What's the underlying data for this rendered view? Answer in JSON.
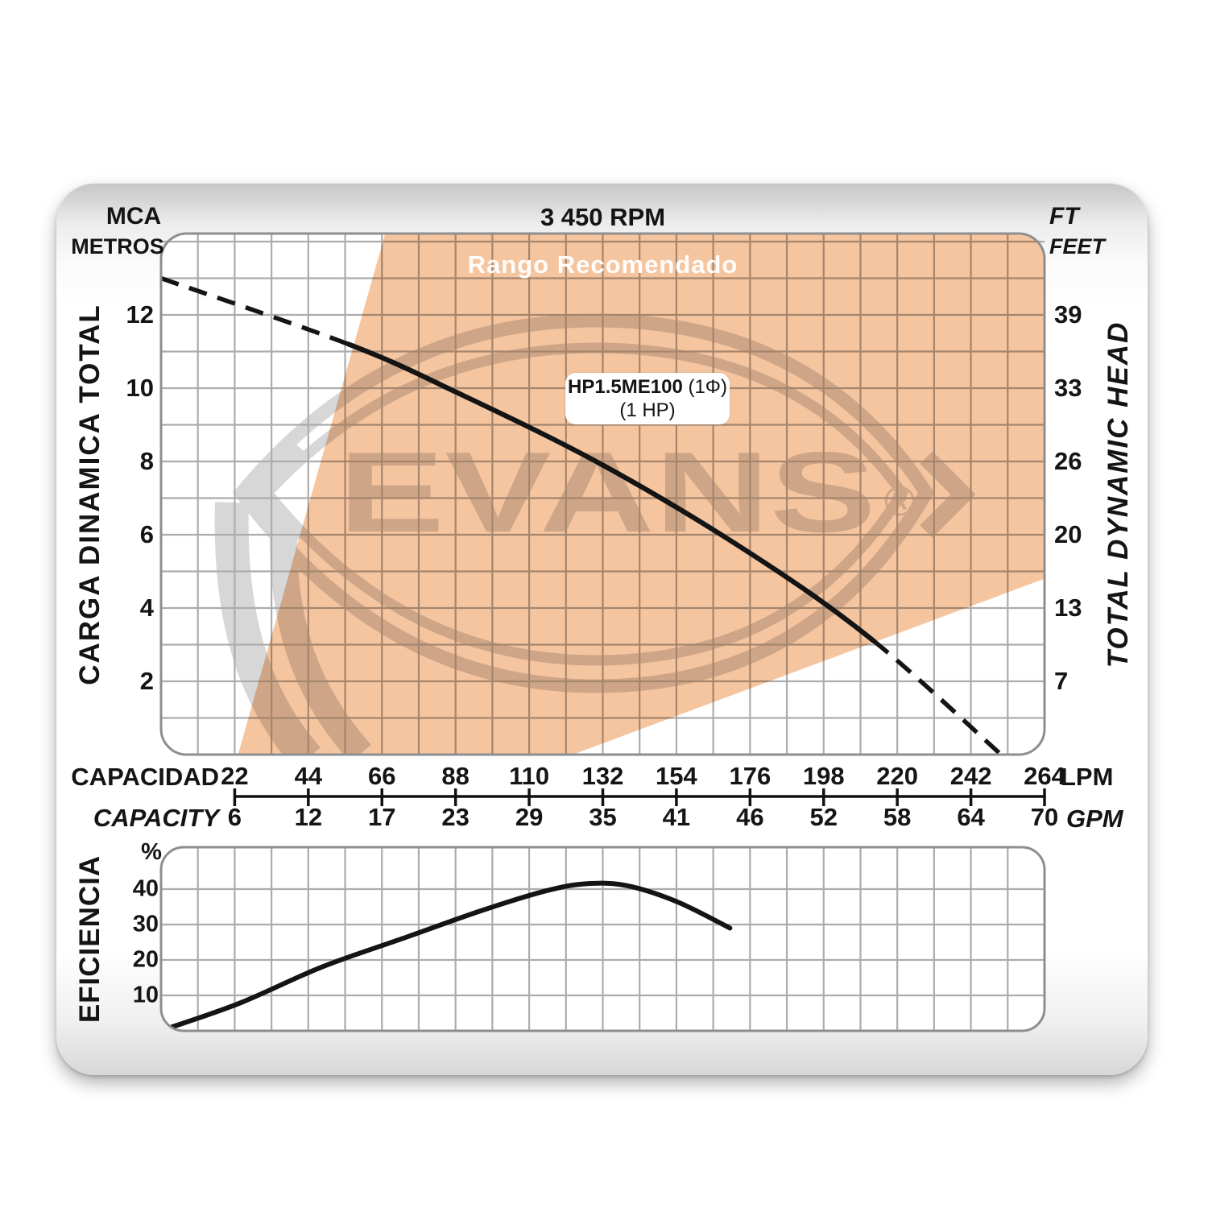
{
  "header": {
    "speed": "3 450 RPM",
    "mca": "MCA",
    "metros": "METROS",
    "ft": "FT",
    "feet": "FEET"
  },
  "main_chart": {
    "recommended_label": "Rango Recomendado",
    "left_axis_title": "CARGA DINAMICA TOTAL",
    "right_axis_title": "TOTAL DYNAMIC HEAD",
    "curve_box": {
      "model": "HP1.5ME100",
      "phase": " (1Φ)",
      "power": "(1 HP)"
    }
  },
  "x_axis": {
    "label_lpm": "CAPACIDAD",
    "label_gpm": "CAPACITY",
    "unit_lpm": "LPM",
    "unit_gpm": "GPM"
  },
  "eff_chart": {
    "title": "EFICIENCIA",
    "unit": "%"
  },
  "watermark": {
    "text": "EVANS",
    "reg": "®"
  },
  "colors": {
    "recommended": "#F5C5A0",
    "grid": "#ACACAC",
    "plot_border": "#8E8E8E",
    "curve": "#141414",
    "watermark": "#D7D7D7",
    "axis_line": "#111111"
  },
  "chart_data": [
    {
      "type": "line",
      "name": "pump-head-curve",
      "title": "3 450 RPM",
      "model": "HP1.5ME100 (1Φ) (1 HP)",
      "x": {
        "unit": "LPM",
        "ticks_lpm": [
          22,
          44,
          66,
          88,
          110,
          132,
          154,
          176,
          198,
          220,
          242,
          264
        ],
        "ticks_gpm": [
          6,
          12,
          17,
          23,
          29,
          35,
          41,
          46,
          52,
          58,
          64,
          70
        ]
      },
      "y": {
        "unit_left": "m",
        "ticks_m": [
          12,
          10,
          8,
          6,
          4,
          2
        ],
        "unit_right": "ft",
        "ticks_ft": [
          39,
          33,
          26,
          20,
          13,
          7
        ],
        "range_m": [
          0,
          14.2
        ]
      },
      "points_lpm_m": [
        [
          0,
          13.0
        ],
        [
          56,
          11.2
        ],
        [
          88,
          9.9
        ],
        [
          132,
          7.9
        ],
        [
          176,
          5.5
        ],
        [
          213,
          3.1
        ],
        [
          251,
          0
        ]
      ],
      "solid_segment_indexes": [
        1,
        5
      ],
      "recommended_region_lpm_m": [
        [
          67,
          14.23
        ],
        [
          264,
          14.23
        ],
        [
          264,
          4.8
        ],
        [
          123,
          0
        ],
        [
          23,
          0
        ]
      ]
    },
    {
      "type": "line",
      "name": "efficiency-curve",
      "y_unit": "%",
      "ticks_pct": [
        40,
        30,
        20,
        10
      ],
      "points_lpm_pct": [
        [
          3,
          1
        ],
        [
          24,
          8
        ],
        [
          48,
          18
        ],
        [
          72,
          26
        ],
        [
          96,
          34
        ],
        [
          115,
          39.5
        ],
        [
          127,
          41.5
        ],
        [
          139,
          41
        ],
        [
          154,
          36.5
        ],
        [
          170,
          29
        ]
      ]
    }
  ]
}
